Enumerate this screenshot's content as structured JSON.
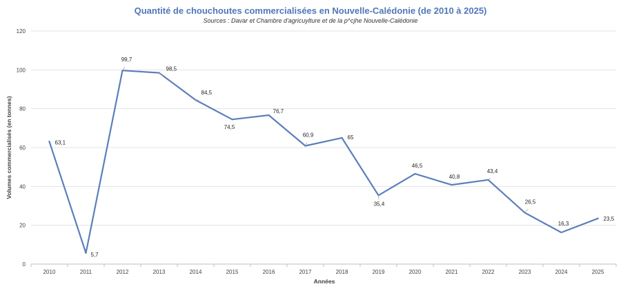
{
  "colors": {
    "title": "#4f77b8",
    "line": "#5b7fba",
    "grid": "#e3e3e3",
    "axis": "#bfbfbf",
    "leader": "#a6a6a6"
  },
  "chart_data": {
    "type": "line",
    "title": "Quantité de chouchoutes commercialisées en Nouvelle-Calédonie (de 2010 à 2025)",
    "subtitle": "Sources : Davar et Chambre d'agricuylture et de la p^cjhe Nouvelle-Calédonie",
    "xlabel": "Années",
    "ylabel": "Volumes commercialisés (en tonnes)",
    "ylim": [
      0,
      120
    ],
    "yticks": [
      "0",
      "20",
      "40",
      "60",
      "80",
      "100",
      "120"
    ],
    "categories": [
      "2010",
      "2011",
      "2012",
      "2013",
      "2014",
      "2015",
      "2016",
      "2017",
      "2018",
      "2019",
      "2020",
      "2021",
      "2022",
      "2023",
      "2024",
      "2025"
    ],
    "values": [
      63.1,
      5.7,
      99.7,
      98.5,
      84.5,
      74.5,
      76.7,
      60.9,
      65,
      35.4,
      46.5,
      40.8,
      43.4,
      26.5,
      16.3,
      23.5
    ],
    "value_labels": [
      "63,1",
      "5,7",
      "99,7",
      "98,5",
      "84,5",
      "74,5",
      "76,7",
      "60,9",
      "65",
      "35,4",
      "46,5",
      "40,8",
      "43,4",
      "26,5",
      "16,3",
      "23,5"
    ],
    "grid": true,
    "legend": "none"
  }
}
